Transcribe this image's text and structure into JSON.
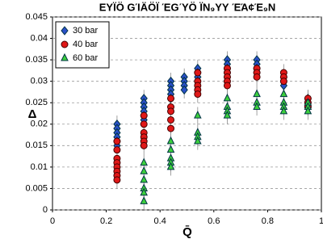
{
  "chart_data": {
    "type": "scatter",
    "title": "ΕΥΪÖ GΊÄÖÏ ΈGΎÖ ÏΝ₉ΥΥ ΈΆ¢Έ₉Ν",
    "x_label": "Q̄",
    "y_label": "Δ",
    "xlim": [
      0,
      1
    ],
    "ylim": [
      0,
      0.045
    ],
    "xticks": [
      0,
      0.2,
      0.4,
      0.6,
      0.8,
      1
    ],
    "yticks": [
      0,
      0.005,
      0.01,
      0.015,
      0.02,
      0.025,
      0.03,
      0.035,
      0.04,
      0.045
    ],
    "grid": true,
    "legend": "upper left",
    "series": [
      {
        "name": "30 bar",
        "color": "#2a50c8",
        "marker": "diamond",
        "error": 0.002,
        "x": [
          0.24,
          0.24,
          0.24,
          0.24,
          0.24,
          0.24,
          0.34,
          0.34,
          0.34,
          0.34,
          0.34,
          0.34,
          0.44,
          0.44,
          0.44,
          0.44,
          0.44,
          0.49,
          0.49,
          0.49,
          0.49,
          0.54,
          0.54,
          0.54,
          0.54,
          0.65,
          0.65,
          0.65,
          0.65,
          0.65,
          0.76,
          0.76,
          0.76,
          0.76,
          0.86,
          0.86,
          0.86,
          0.95,
          0.95,
          0.95
        ],
        "y": [
          0.02,
          0.019,
          0.018,
          0.017,
          0.016,
          0.015,
          0.026,
          0.025,
          0.024,
          0.023,
          0.022,
          0.021,
          0.03,
          0.029,
          0.028,
          0.027,
          0.026,
          0.031,
          0.03,
          0.029,
          0.028,
          0.033,
          0.032,
          0.031,
          0.03,
          0.035,
          0.034,
          0.033,
          0.032,
          0.031,
          0.035,
          0.034,
          0.033,
          0.032,
          0.031,
          0.03,
          0.029,
          0.026,
          0.025,
          0.024
        ]
      },
      {
        "name": "40 bar",
        "color": "#e01818",
        "marker": "circle",
        "error": 0.002,
        "x": [
          0.24,
          0.24,
          0.24,
          0.24,
          0.24,
          0.24,
          0.24,
          0.24,
          0.34,
          0.34,
          0.34,
          0.34,
          0.34,
          0.34,
          0.44,
          0.44,
          0.44,
          0.44,
          0.44,
          0.54,
          0.54,
          0.54,
          0.54,
          0.54,
          0.65,
          0.65,
          0.65,
          0.65,
          0.65,
          0.76,
          0.76,
          0.76,
          0.86,
          0.86,
          0.86,
          0.95,
          0.95,
          0.95
        ],
        "y": [
          0.016,
          0.014,
          0.012,
          0.011,
          0.01,
          0.009,
          0.008,
          0.007,
          0.022,
          0.02,
          0.018,
          0.017,
          0.016,
          0.015,
          0.026,
          0.024,
          0.023,
          0.021,
          0.019,
          0.032,
          0.03,
          0.029,
          0.028,
          0.027,
          0.033,
          0.032,
          0.031,
          0.03,
          0.029,
          0.033,
          0.032,
          0.031,
          0.032,
          0.031,
          0.03,
          0.026,
          0.025,
          0.024
        ]
      },
      {
        "name": "60 bar",
        "color": "#3cd03c",
        "marker": "triangle",
        "error": 0.002,
        "x": [
          0.34,
          0.34,
          0.34,
          0.34,
          0.34,
          0.34,
          0.44,
          0.44,
          0.44,
          0.44,
          0.44,
          0.54,
          0.54,
          0.54,
          0.54,
          0.65,
          0.65,
          0.65,
          0.65,
          0.76,
          0.76,
          0.76,
          0.86,
          0.86,
          0.86,
          0.86,
          0.95,
          0.95,
          0.95
        ],
        "y": [
          0.011,
          0.009,
          0.007,
          0.005,
          0.004,
          0.002,
          0.016,
          0.014,
          0.012,
          0.011,
          0.01,
          0.022,
          0.018,
          0.017,
          0.016,
          0.026,
          0.024,
          0.023,
          0.022,
          0.027,
          0.025,
          0.024,
          0.027,
          0.025,
          0.024,
          0.023,
          0.025,
          0.024,
          0.023
        ]
      }
    ]
  }
}
